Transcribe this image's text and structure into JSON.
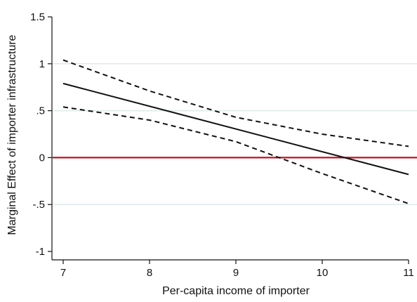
{
  "chart_data": {
    "type": "line",
    "xlabel": "Per-capita income of importer",
    "ylabel": "Marginal Effect of importer infrastructure",
    "xlim": [
      7,
      11
    ],
    "ylim": [
      -1,
      1.5
    ],
    "x_ticks": [
      {
        "value": 7,
        "label": "7"
      },
      {
        "value": 8,
        "label": "8"
      },
      {
        "value": 9,
        "label": "9"
      },
      {
        "value": 10,
        "label": "10"
      },
      {
        "value": 11,
        "label": "11"
      }
    ],
    "y_ticks": [
      {
        "value": 1.5,
        "label": "1.5"
      },
      {
        "value": 1,
        "label": "1"
      },
      {
        "value": 0.5,
        "label": ".5"
      },
      {
        "value": 0,
        "label": "0"
      },
      {
        "value": -0.5,
        "label": "-.5"
      },
      {
        "value": -1,
        "label": "-1"
      }
    ],
    "gridlines": [
      -0.5,
      0.5,
      1
    ],
    "reference_line": {
      "y": 0,
      "color": "#c0111f"
    },
    "series": [
      {
        "style": "solid",
        "color": "#111111",
        "x": [
          7,
          11
        ],
        "y": [
          0.79,
          -0.18
        ]
      },
      {
        "style": "dashed",
        "color": "#111111",
        "x": [
          7,
          8,
          9,
          10,
          11
        ],
        "y": [
          1.04,
          0.71,
          0.43,
          0.25,
          0.12
        ]
      },
      {
        "style": "dashed",
        "color": "#111111",
        "x": [
          7,
          8,
          9,
          10,
          11
        ],
        "y": [
          0.54,
          0.4,
          0.17,
          -0.17,
          -0.49
        ]
      }
    ],
    "grid_color": "#dfe9e9"
  }
}
